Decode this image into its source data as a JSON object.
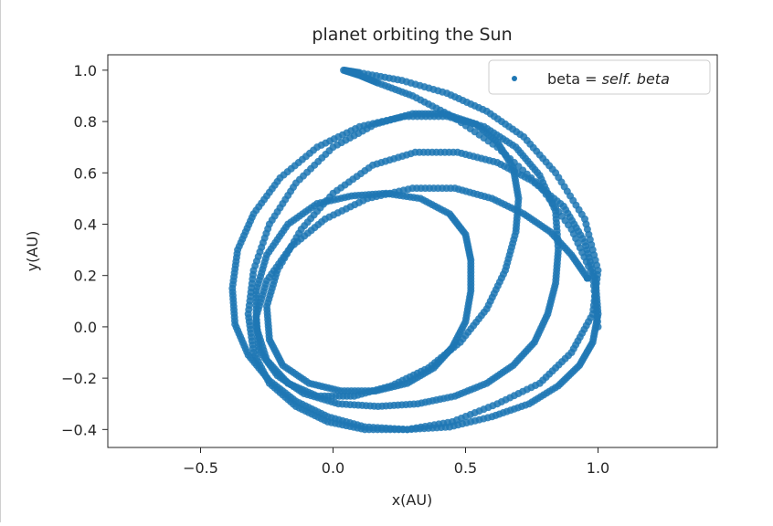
{
  "chart_data": {
    "type": "scatter",
    "title": "planet orbiting the Sun",
    "xlabel": "x(AU)",
    "ylabel": "y(AU)",
    "xlim": [
      -0.85,
      1.45
    ],
    "ylim": [
      -0.47,
      1.06
    ],
    "xticks": [
      -0.5,
      0.0,
      0.5,
      1.0
    ],
    "xtick_labels": [
      "−0.5",
      "0.0",
      "0.5",
      "1.0"
    ],
    "yticks": [
      -0.4,
      -0.2,
      0.0,
      0.2,
      0.4,
      0.6,
      0.8,
      1.0
    ],
    "ytick_labels": [
      "−0.4",
      "−0.2",
      "0.0",
      "0.2",
      "0.4",
      "0.6",
      "0.8",
      "1.0"
    ],
    "grid": false,
    "legend": {
      "placement": "top-right",
      "label_prefix": "beta = ",
      "label_italic": "self. beta"
    },
    "color": "#1f77b4",
    "series": [
      {
        "name": "beta = self. beta",
        "description_points": "precessing orbit, 4 loops, sampled along trajectory",
        "x": [
          1.0,
          0.98,
          0.9,
          0.78,
          0.62,
          0.45,
          0.3,
          0.17,
          0.1,
          0.04,
          0.1,
          0.26,
          0.43,
          0.58,
          0.72,
          0.84,
          0.95,
          1.0,
          0.98,
          0.9,
          0.78,
          0.62,
          0.45,
          0.28,
          0.12,
          -0.02,
          -0.14,
          -0.24,
          -0.3,
          -0.32,
          -0.3,
          -0.24,
          -0.14,
          0.0,
          0.16,
          0.3,
          0.42,
          0.54,
          0.62,
          0.68,
          0.7,
          0.69,
          0.65,
          0.58,
          0.48,
          0.36,
          0.22,
          0.08,
          -0.06,
          -0.17,
          -0.25,
          -0.29,
          -0.29,
          -0.25,
          -0.17,
          -0.06,
          0.07,
          0.2,
          0.33,
          0.44,
          0.5,
          0.52,
          0.52,
          0.5,
          0.45,
          0.38,
          0.28,
          0.16,
          0.03,
          -0.09,
          -0.19,
          -0.24,
          -0.25,
          -0.21,
          -0.12,
          0.0,
          0.15,
          0.31,
          0.47,
          0.62,
          0.75,
          0.87,
          0.95,
          0.99,
          1.0,
          0.98,
          0.93,
          0.85,
          0.74,
          0.6,
          0.44,
          0.28,
          0.12,
          -0.02,
          -0.14,
          -0.24,
          -0.32,
          -0.37,
          -0.38,
          -0.36,
          -0.3,
          -0.2,
          -0.06,
          0.1,
          0.27,
          0.43,
          0.57,
          0.69,
          0.78,
          0.84,
          0.85,
          0.84,
          0.81,
          0.76,
          0.68,
          0.58,
          0.46,
          0.32,
          0.17,
          0.02,
          -0.11,
          -0.21,
          -0.28,
          -0.29,
          -0.25,
          -0.16,
          -0.03,
          0.13,
          0.3,
          0.46,
          0.6,
          0.72,
          0.82,
          0.9,
          0.96
        ],
        "y": [
          0.0,
          0.2,
          0.38,
          0.55,
          0.7,
          0.82,
          0.9,
          0.95,
          0.98,
          1.0,
          0.99,
          0.96,
          0.91,
          0.84,
          0.74,
          0.6,
          0.42,
          0.22,
          0.05,
          -0.1,
          -0.22,
          -0.3,
          -0.37,
          -0.4,
          -0.4,
          -0.37,
          -0.31,
          -0.22,
          -0.1,
          0.05,
          0.22,
          0.4,
          0.56,
          0.7,
          0.79,
          0.83,
          0.83,
          0.79,
          0.72,
          0.62,
          0.5,
          0.37,
          0.22,
          0.07,
          -0.06,
          -0.16,
          -0.23,
          -0.27,
          -0.27,
          -0.22,
          -0.13,
          0.0,
          0.14,
          0.28,
          0.4,
          0.48,
          0.51,
          0.52,
          0.5,
          0.44,
          0.36,
          0.26,
          0.14,
          0.02,
          -0.08,
          -0.16,
          -0.22,
          -0.25,
          -0.25,
          -0.22,
          -0.15,
          -0.05,
          0.08,
          0.22,
          0.38,
          0.52,
          0.63,
          0.68,
          0.68,
          0.64,
          0.57,
          0.47,
          0.33,
          0.18,
          0.05,
          -0.06,
          -0.15,
          -0.23,
          -0.3,
          -0.35,
          -0.39,
          -0.4,
          -0.39,
          -0.35,
          -0.29,
          -0.21,
          -0.11,
          0.01,
          0.15,
          0.3,
          0.44,
          0.58,
          0.7,
          0.78,
          0.82,
          0.82,
          0.78,
          0.7,
          0.59,
          0.45,
          0.3,
          0.17,
          0.05,
          -0.06,
          -0.15,
          -0.22,
          -0.27,
          -0.3,
          -0.31,
          -0.3,
          -0.26,
          -0.19,
          -0.09,
          0.04,
          0.18,
          0.31,
          0.42,
          0.5,
          0.54,
          0.54,
          0.5,
          0.44,
          0.37,
          0.28,
          0.19
        ]
      }
    ]
  }
}
